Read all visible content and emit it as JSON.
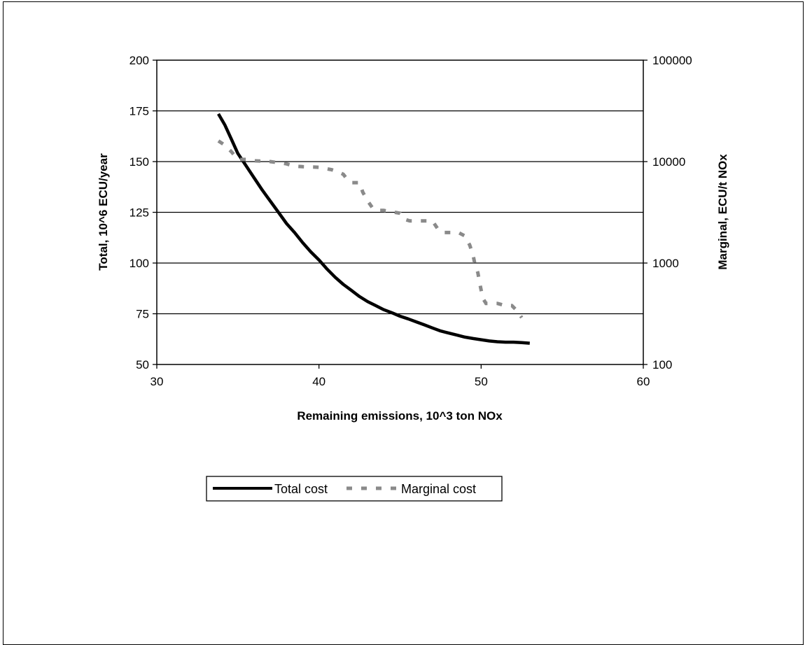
{
  "chart_data": {
    "type": "line",
    "title": "",
    "xlabel": "Remaining emissions, 10^3 ton NOx",
    "ylabel": "Total, 10^6  ECU/year",
    "y2label": "Marginal, ECU/t NOx",
    "xlim": [
      30,
      60
    ],
    "ylim": [
      50,
      200
    ],
    "y2lim": [
      100,
      100000
    ],
    "y2scale": "log",
    "grid": "horizontal",
    "legend_position": "bottom",
    "x_ticks": [
      "30",
      "40",
      "50",
      "60"
    ],
    "y_ticks": [
      "50",
      "75",
      "100",
      "125",
      "150",
      "175",
      "200"
    ],
    "y2_ticks": [
      "100",
      "1000",
      "10000",
      "100000"
    ],
    "series": [
      {
        "name": "Total cost",
        "axis": "left",
        "color": "#000000",
        "style": "solid",
        "x": [
          33.8,
          34.2,
          34.6,
          35.0,
          35.5,
          36.0,
          36.5,
          37.0,
          37.5,
          38.0,
          38.5,
          39.0,
          39.5,
          40.0,
          40.5,
          41.0,
          41.5,
          42.0,
          42.5,
          43.0,
          43.5,
          44.0,
          44.5,
          45.0,
          45.5,
          46.0,
          46.5,
          47.0,
          47.5,
          48.0,
          48.5,
          49.0,
          49.5,
          50.0,
          50.5,
          51.0,
          51.5,
          52.0,
          52.5,
          53.0
        ],
        "y": [
          173.5,
          168,
          161,
          154,
          148,
          142,
          136,
          130.5,
          125,
          119.5,
          115,
          110,
          105.5,
          101.5,
          97,
          93,
          89.5,
          86.5,
          83.5,
          81,
          79,
          77,
          75.5,
          73.8,
          72.5,
          71,
          69.5,
          68,
          66.5,
          65.5,
          64.5,
          63.5,
          62.8,
          62.2,
          61.6,
          61.2,
          61,
          61,
          60.8,
          60.5
        ]
      },
      {
        "name": "Marginal cost",
        "axis": "right",
        "color": "#8a8a8a",
        "style": "dashed",
        "x": [
          33.8,
          34.2,
          34.6,
          34.9,
          35.0,
          35.5,
          36.0,
          37.0,
          38.0,
          38.5,
          39.0,
          40.0,
          40.8,
          41.2,
          41.5,
          41.8,
          42.0,
          42.5,
          42.7,
          43.0,
          43.3,
          43.6,
          44.0,
          44.5,
          45.0,
          45.3,
          45.6,
          46.0,
          47.0,
          47.3,
          47.6,
          48.0,
          48.6,
          49.0,
          49.3,
          49.5,
          49.6,
          49.8,
          49.9,
          50.1,
          50.3,
          50.6,
          51.0,
          51.5,
          51.9,
          52.2,
          52.5
        ],
        "y": [
          16000,
          14500,
          12500,
          11000,
          10500,
          10500,
          10200,
          10000,
          9500,
          9000,
          8900,
          8800,
          8300,
          7900,
          7500,
          6500,
          6200,
          6200,
          5000,
          4100,
          3500,
          3300,
          3300,
          3200,
          3100,
          2700,
          2600,
          2600,
          2600,
          2200,
          2000,
          2000,
          2000,
          1850,
          1500,
          1200,
          1000,
          800,
          650,
          450,
          400,
          400,
          400,
          380,
          380,
          340,
          290
        ]
      }
    ]
  }
}
